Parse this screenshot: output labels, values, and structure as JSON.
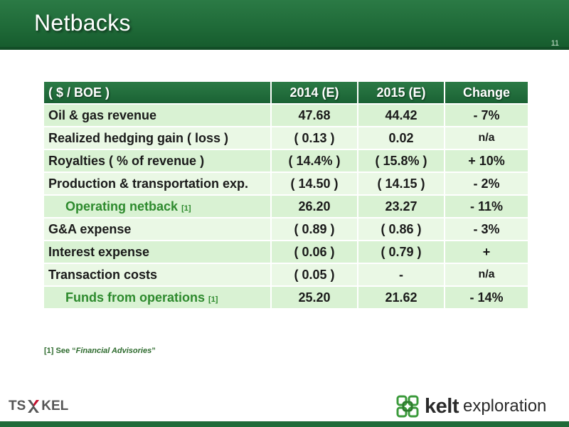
{
  "slide": {
    "title": "Netbacks",
    "page_number": "11"
  },
  "table": {
    "headers": [
      "( $ / BOE )",
      "2014 (E)",
      "2015 (E)",
      "Change"
    ],
    "rows": [
      {
        "label": "Oil & gas revenue",
        "fn": "",
        "v2014": "47.68",
        "v2015": "44.42",
        "change": "- 7%"
      },
      {
        "label": "Realized hedging gain ( loss )",
        "fn": "",
        "v2014": "( 0.13 )",
        "v2015": "0.02",
        "change": "n/a"
      },
      {
        "label": "Royalties ( % of revenue )",
        "fn": "",
        "v2014": "( 14.4% )",
        "v2015": "( 15.8% )",
        "change": "+ 10%"
      },
      {
        "label": "Production & transportation exp.",
        "fn": "",
        "v2014": "( 14.50 )",
        "v2015": "( 14.15 )",
        "change": "- 2%"
      },
      {
        "label": "Operating netback",
        "fn": "[1]",
        "v2014": "26.20",
        "v2015": "23.27",
        "change": "- 11%"
      },
      {
        "label": "G&A expense",
        "fn": "",
        "v2014": "( 0.89 )",
        "v2015": "( 0.86 )",
        "change": "- 3%"
      },
      {
        "label": "Interest expense",
        "fn": "",
        "v2014": "( 0.06 )",
        "v2015": "( 0.79 )",
        "change": "+"
      },
      {
        "label": "Transaction costs",
        "fn": "",
        "v2014": "( 0.05 )",
        "v2015": "-",
        "change": "n/a"
      },
      {
        "label": "Funds from operations",
        "fn": "[1]",
        "v2014": "25.20",
        "v2015": "21.62",
        "change": "- 14%"
      }
    ]
  },
  "footnote": {
    "marker": "[1] See “",
    "link": "Financial Advisories",
    "close": "”"
  },
  "footer": {
    "tsx_prefix": "TS",
    "tsx_suffix": "KEL",
    "brand_name": "kelt",
    "brand_word": "exploration",
    "colors": {
      "header_green": "#1f6a38",
      "row_green": "#d9f2d3",
      "subtotal_text": "#2d8a2d",
      "logo_green": "#3a9a3a"
    }
  }
}
